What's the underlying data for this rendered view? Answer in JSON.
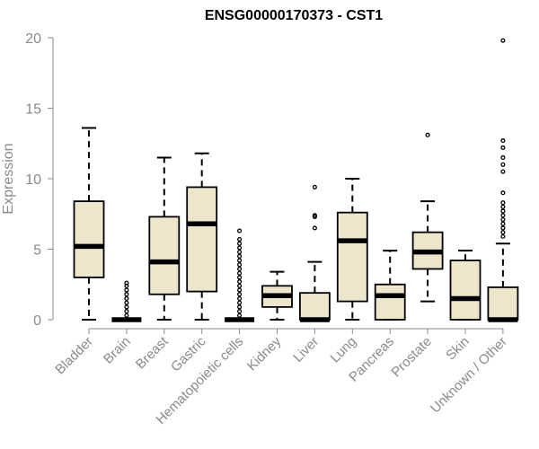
{
  "chart_data": {
    "type": "boxplot",
    "title": "ENSG00000170373 - CST1",
    "xlabel": "",
    "ylabel": "Expression",
    "ylim": [
      0,
      20
    ],
    "yticks": [
      0,
      5,
      10,
      15,
      20
    ],
    "grid": false,
    "box_color": "#ede6cc",
    "categories": [
      "Bladder",
      "Brain",
      "Breast",
      "Gastric",
      "Hematopoietic cells",
      "Kidney",
      "Liver",
      "Lung",
      "Pancreas",
      "Prostate",
      "Skin",
      "Unknown / Other"
    ],
    "boxes": [
      {
        "category": "Bladder",
        "whisker_low": 0,
        "q1": 3.0,
        "median": 5.2,
        "q3": 8.4,
        "whisker_high": 13.6,
        "outliers": []
      },
      {
        "category": "Brain",
        "whisker_low": 0,
        "q1": 0,
        "median": 0,
        "q3": 0,
        "whisker_high": 0,
        "outliers": [
          0.3,
          0.6,
          0.9,
          1.2,
          1.5,
          1.8,
          2.1,
          2.4,
          2.6
        ]
      },
      {
        "category": "Breast",
        "whisker_low": 0,
        "q1": 1.8,
        "median": 4.1,
        "q3": 7.3,
        "whisker_high": 11.5,
        "outliers": []
      },
      {
        "category": "Gastric",
        "whisker_low": 0,
        "q1": 2.0,
        "median": 6.8,
        "q3": 9.4,
        "whisker_high": 11.8,
        "outliers": []
      },
      {
        "category": "Hematopoietic cells",
        "whisker_low": 0,
        "q1": 0,
        "median": 0,
        "q3": 0,
        "whisker_high": 0,
        "outliers": [
          0.3,
          0.6,
          0.9,
          1.2,
          1.5,
          1.8,
          2.1,
          2.4,
          2.7,
          3.0,
          3.3,
          3.6,
          3.9,
          4.2,
          4.5,
          4.8,
          5.1,
          5.4,
          5.7,
          6.3
        ]
      },
      {
        "category": "Kidney",
        "whisker_low": 0,
        "q1": 0.9,
        "median": 1.7,
        "q3": 2.4,
        "whisker_high": 3.4,
        "outliers": []
      },
      {
        "category": "Liver",
        "whisker_low": 0,
        "q1": 0,
        "median": 0,
        "q3": 1.9,
        "whisker_high": 4.1,
        "outliers": [
          6.5,
          7.3,
          7.4,
          9.4
        ]
      },
      {
        "category": "Lung",
        "whisker_low": 0,
        "q1": 1.3,
        "median": 5.6,
        "q3": 7.6,
        "whisker_high": 10.0,
        "outliers": []
      },
      {
        "category": "Pancreas",
        "whisker_low": 0,
        "q1": 0,
        "median": 1.7,
        "q3": 2.5,
        "whisker_high": 4.9,
        "outliers": []
      },
      {
        "category": "Prostate",
        "whisker_low": 1.3,
        "q1": 3.6,
        "median": 4.8,
        "q3": 6.2,
        "whisker_high": 8.4,
        "outliers": [
          13.1
        ]
      },
      {
        "category": "Skin",
        "whisker_low": 0,
        "q1": 0,
        "median": 1.5,
        "q3": 4.2,
        "whisker_high": 4.9,
        "outliers": []
      },
      {
        "category": "Unknown / Other",
        "whisker_low": 0,
        "q1": 0,
        "median": 0,
        "q3": 2.3,
        "whisker_high": 5.4,
        "outliers": [
          5.9,
          6.2,
          6.5,
          6.8,
          7.1,
          7.4,
          7.7,
          8.0,
          8.3,
          9.0,
          10.5,
          11.0,
          11.5,
          12.2,
          12.7,
          19.8
        ]
      }
    ]
  }
}
